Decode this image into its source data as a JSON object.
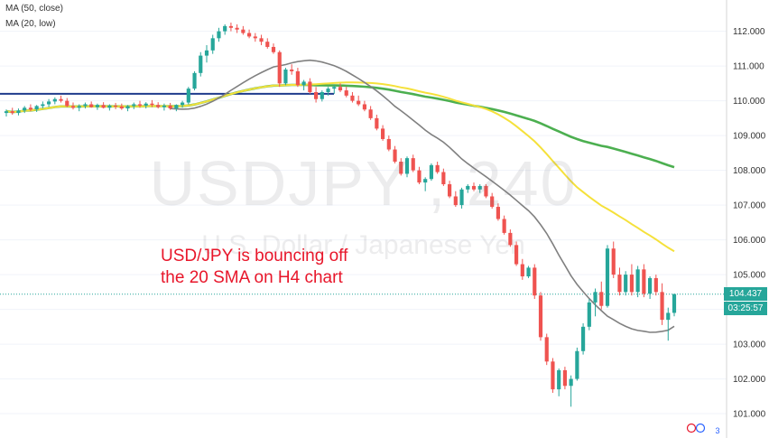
{
  "legend": [
    {
      "label": "MA (50, close)"
    },
    {
      "label": "MA (20, low)"
    }
  ],
  "watermark": {
    "symbol": "USDJPY , 240",
    "description": "U.S. Dollar / Japanese Yen"
  },
  "annotation": {
    "line1": "USD/JPY is bouncing off",
    "line2": "the 20 SMA on H4 chart"
  },
  "price_label": "104.437",
  "countdown": "03:25:57",
  "logo_text": "3",
  "colors": {
    "up": "#26a69a",
    "down": "#ef5350",
    "ma20": "#808080",
    "ma50": "#f5e13b",
    "ma100": "#4caf50",
    "hline": "#1f3b8c",
    "price_badge": "#26a69a",
    "countdown_badge": "#26a69a",
    "annotation": "#e8162a"
  },
  "chart_data": {
    "type": "candlestick",
    "yaxis_ticks": [
      "112.000",
      "111.000",
      "110.000",
      "109.000",
      "108.000",
      "107.000",
      "106.000",
      "105.000",
      "104.000",
      "103.000",
      "102.000",
      "101.000"
    ],
    "ylim": [
      100.3,
      112.9
    ],
    "current_price": 104.437,
    "horizontal_line": 110.2,
    "candles": [
      [
        109.65,
        109.75,
        109.55,
        109.7
      ],
      [
        109.7,
        109.8,
        109.6,
        109.65
      ],
      [
        109.65,
        109.78,
        109.58,
        109.72
      ],
      [
        109.72,
        109.85,
        109.65,
        109.8
      ],
      [
        109.8,
        109.9,
        109.7,
        109.75
      ],
      [
        109.75,
        109.88,
        109.68,
        109.85
      ],
      [
        109.85,
        109.98,
        109.78,
        109.9
      ],
      [
        109.9,
        110.05,
        109.82,
        109.98
      ],
      [
        109.98,
        110.1,
        109.9,
        110.05
      ],
      [
        110.05,
        110.15,
        109.95,
        110.0
      ],
      [
        110.0,
        110.08,
        109.82,
        109.85
      ],
      [
        109.85,
        109.95,
        109.75,
        109.8
      ],
      [
        109.8,
        109.9,
        109.7,
        109.85
      ],
      [
        109.85,
        109.95,
        109.78,
        109.9
      ],
      [
        109.9,
        109.98,
        109.8,
        109.82
      ],
      [
        109.82,
        109.92,
        109.74,
        109.88
      ],
      [
        109.88,
        109.96,
        109.78,
        109.8
      ],
      [
        109.8,
        109.9,
        109.72,
        109.86
      ],
      [
        109.86,
        109.94,
        109.76,
        109.84
      ],
      [
        109.84,
        109.92,
        109.74,
        109.78
      ],
      [
        109.78,
        109.88,
        109.7,
        109.85
      ],
      [
        109.85,
        109.95,
        109.76,
        109.9
      ],
      [
        109.9,
        110.0,
        109.8,
        109.86
      ],
      [
        109.86,
        109.96,
        109.78,
        109.92
      ],
      [
        109.92,
        110.02,
        109.82,
        109.88
      ],
      [
        109.88,
        109.96,
        109.78,
        109.82
      ],
      [
        109.82,
        109.92,
        109.72,
        109.86
      ],
      [
        109.86,
        109.94,
        109.74,
        109.78
      ],
      [
        109.78,
        109.9,
        109.7,
        109.88
      ],
      [
        109.88,
        110.0,
        109.8,
        109.95
      ],
      [
        109.95,
        110.4,
        109.9,
        110.35
      ],
      [
        110.35,
        110.85,
        110.3,
        110.8
      ],
      [
        110.8,
        111.4,
        110.7,
        111.3
      ],
      [
        111.3,
        111.6,
        111.1,
        111.45
      ],
      [
        111.45,
        111.9,
        111.35,
        111.8
      ],
      [
        111.8,
        112.1,
        111.7,
        112.0
      ],
      [
        112.0,
        112.2,
        111.9,
        112.15
      ],
      [
        112.15,
        112.25,
        112.0,
        112.1
      ],
      [
        112.1,
        112.2,
        111.95,
        112.05
      ],
      [
        112.05,
        112.15,
        111.9,
        111.95
      ],
      [
        111.95,
        112.05,
        111.8,
        111.85
      ],
      [
        111.85,
        111.95,
        111.7,
        111.8
      ],
      [
        111.8,
        111.9,
        111.6,
        111.7
      ],
      [
        111.7,
        111.8,
        111.5,
        111.55
      ],
      [
        111.55,
        111.65,
        111.35,
        111.4
      ],
      [
        111.4,
        111.45,
        110.4,
        110.5
      ],
      [
        110.5,
        110.95,
        110.45,
        110.9
      ],
      [
        110.9,
        111.05,
        110.75,
        110.85
      ],
      [
        110.85,
        110.95,
        110.4,
        110.45
      ],
      [
        110.45,
        110.6,
        110.3,
        110.55
      ],
      [
        110.55,
        110.65,
        110.2,
        110.25
      ],
      [
        110.25,
        110.4,
        109.95,
        110.05
      ],
      [
        110.05,
        110.3,
        109.98,
        110.25
      ],
      [
        110.25,
        110.4,
        110.15,
        110.35
      ],
      [
        110.35,
        110.45,
        110.2,
        110.4
      ],
      [
        110.4,
        110.5,
        110.25,
        110.3
      ],
      [
        110.3,
        110.4,
        110.1,
        110.15
      ],
      [
        110.15,
        110.25,
        109.95,
        110.0
      ],
      [
        110.0,
        110.15,
        109.85,
        109.9
      ],
      [
        109.9,
        110.0,
        109.7,
        109.75
      ],
      [
        109.75,
        109.85,
        109.45,
        109.5
      ],
      [
        109.5,
        109.6,
        109.15,
        109.2
      ],
      [
        109.2,
        109.3,
        108.85,
        108.9
      ],
      [
        108.9,
        109.0,
        108.55,
        108.6
      ],
      [
        108.6,
        108.7,
        108.2,
        108.25
      ],
      [
        108.25,
        108.35,
        107.85,
        107.9
      ],
      [
        107.9,
        108.4,
        107.8,
        108.35
      ],
      [
        108.35,
        108.45,
        107.95,
        108.0
      ],
      [
        108.0,
        108.1,
        107.6,
        107.65
      ],
      [
        107.65,
        107.8,
        107.4,
        107.75
      ],
      [
        107.75,
        108.2,
        107.7,
        108.15
      ],
      [
        108.15,
        108.25,
        107.9,
        107.95
      ],
      [
        107.95,
        108.05,
        107.55,
        107.6
      ],
      [
        107.6,
        107.7,
        107.2,
        107.25
      ],
      [
        107.25,
        107.4,
        106.95,
        107.0
      ],
      [
        107.0,
        107.5,
        106.9,
        107.45
      ],
      [
        107.45,
        107.6,
        107.35,
        107.55
      ],
      [
        107.55,
        107.65,
        107.4,
        107.45
      ],
      [
        107.45,
        107.6,
        107.35,
        107.55
      ],
      [
        107.55,
        107.6,
        107.2,
        107.25
      ],
      [
        107.25,
        107.35,
        106.9,
        106.95
      ],
      [
        106.95,
        107.05,
        106.55,
        106.6
      ],
      [
        106.6,
        106.7,
        106.15,
        106.2
      ],
      [
        106.2,
        106.3,
        105.8,
        105.85
      ],
      [
        105.85,
        105.95,
        105.25,
        105.3
      ],
      [
        105.3,
        105.45,
        104.85,
        104.95
      ],
      [
        104.95,
        105.25,
        104.9,
        105.2
      ],
      [
        105.2,
        105.3,
        104.3,
        104.4
      ],
      [
        104.4,
        104.5,
        103.1,
        103.2
      ],
      [
        103.2,
        103.3,
        102.4,
        102.5
      ],
      [
        102.5,
        102.6,
        101.6,
        101.7
      ],
      [
        101.7,
        102.3,
        101.5,
        102.25
      ],
      [
        102.25,
        102.35,
        101.7,
        101.8
      ],
      [
        101.8,
        102.1,
        101.2,
        102.0
      ],
      [
        102.0,
        102.9,
        101.95,
        102.8
      ],
      [
        102.8,
        103.6,
        102.7,
        103.5
      ],
      [
        103.5,
        104.3,
        103.4,
        104.2
      ],
      [
        104.2,
        104.6,
        103.8,
        104.5
      ],
      [
        104.5,
        104.8,
        104.0,
        104.1
      ],
      [
        104.1,
        105.85,
        104.05,
        105.75
      ],
      [
        105.75,
        105.95,
        104.9,
        105.0
      ],
      [
        105.0,
        105.2,
        104.4,
        104.5
      ],
      [
        104.5,
        105.1,
        104.4,
        105.0
      ],
      [
        105.0,
        105.3,
        104.4,
        104.5
      ],
      [
        104.5,
        105.25,
        104.35,
        105.15
      ],
      [
        105.15,
        105.3,
        104.35,
        104.45
      ],
      [
        104.45,
        104.95,
        104.3,
        104.9
      ],
      [
        104.9,
        105.0,
        104.4,
        104.5
      ],
      [
        104.5,
        104.75,
        103.55,
        103.7
      ],
      [
        103.7,
        104.05,
        103.1,
        103.9
      ],
      [
        103.9,
        104.45,
        103.8,
        104.44
      ]
    ]
  }
}
